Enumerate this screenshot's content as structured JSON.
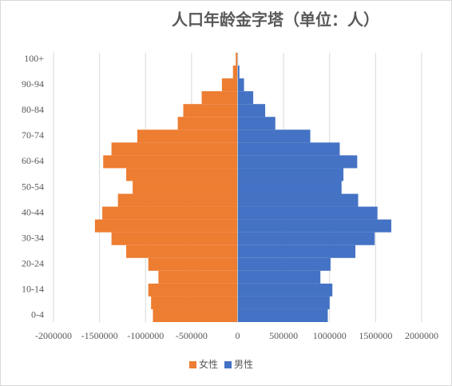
{
  "chart_data": {
    "type": "pyramid",
    "title": "人口年龄金字塔（单位：人）",
    "categories": [
      "0-4",
      null,
      "10-14",
      null,
      "20-24",
      null,
      "30-34",
      null,
      "40-44",
      null,
      "50-54",
      null,
      "60-64",
      null,
      "70-74",
      null,
      "80-84",
      null,
      "90-94",
      null,
      "100+"
    ],
    "series": [
      {
        "name": "女性",
        "color": "#ed7d31",
        "values": [
          -920000,
          -940000,
          -970000,
          -860000,
          -970000,
          -1210000,
          -1370000,
          -1550000,
          -1470000,
          -1300000,
          -1140000,
          -1210000,
          -1460000,
          -1370000,
          -1090000,
          -650000,
          -590000,
          -390000,
          -170000,
          -50000,
          -20000
        ]
      },
      {
        "name": "男性",
        "color": "#4472c4",
        "values": [
          980000,
          1000000,
          1030000,
          900000,
          1010000,
          1280000,
          1490000,
          1670000,
          1520000,
          1310000,
          1130000,
          1150000,
          1300000,
          1110000,
          790000,
          410000,
          300000,
          170000,
          70000,
          20000,
          5000
        ]
      }
    ],
    "xlim": [
      -2000000,
      2000000
    ],
    "xticks": [
      -2000000,
      -1500000,
      -1000000,
      -500000,
      0,
      500000,
      1000000,
      1500000,
      2000000
    ],
    "grid": true,
    "legend": "bottom"
  }
}
